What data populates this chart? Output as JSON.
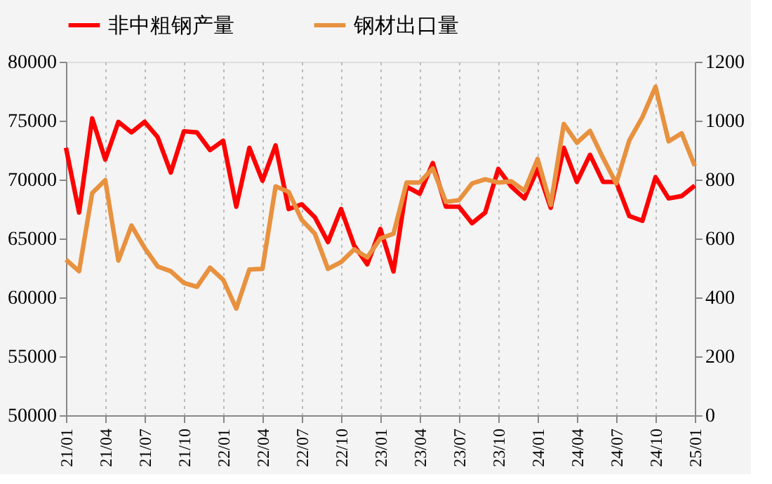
{
  "chart_data": {
    "type": "line",
    "categories": [
      "21/01",
      null,
      null,
      "21/04",
      null,
      null,
      "21/07",
      null,
      null,
      "21/10",
      null,
      null,
      "22/01",
      null,
      null,
      "22/04",
      null,
      null,
      "22/07",
      null,
      null,
      "22/10",
      null,
      null,
      "23/01",
      null,
      null,
      "23/04",
      null,
      null,
      "23/07",
      null,
      null,
      "23/10",
      null,
      null,
      "24/01",
      null,
      null,
      "24/04",
      null,
      null,
      "24/07",
      null,
      null,
      "24/10",
      null,
      null,
      "25/01"
    ],
    "series": [
      {
        "name": "非中粗钢产量",
        "color": "#ff0000",
        "values": [
          72700,
          67200,
          75200,
          71700,
          74900,
          74000,
          74900,
          73600,
          70600,
          74100,
          74000,
          72500,
          73300,
          67700,
          72700,
          69900,
          72900,
          67500,
          67900,
          66800,
          64700,
          67500,
          64400,
          62800,
          65800,
          62200,
          69400,
          68800,
          71400,
          67700,
          67700,
          66300,
          67200,
          70900,
          69400,
          68400,
          70900,
          67600,
          72700,
          69800,
          72100,
          69800,
          69800,
          66900,
          66500,
          70200,
          68400,
          68600,
          69500
        ]
      },
      {
        "name": "钢材出口量",
        "color": "#e8913f",
        "axis": "y2",
        "values": [
          528,
          489,
          754,
          798,
          525,
          644,
          568,
          505,
          489,
          449,
          436,
          501,
          460,
          362,
          495,
          497,
          777,
          758,
          663,
          616,
          497,
          520,
          563,
          536,
          600,
          616,
          790,
          790,
          838,
          724,
          730,
          787,
          801,
          790,
          794,
          762,
          870,
          714,
          989,
          925,
          965,
          873,
          787,
          933,
          1012,
          1115,
          930,
          957,
          846
        ]
      }
    ],
    "ylim": [
      50000,
      80000
    ],
    "yticks": [
      50000,
      55000,
      60000,
      65000,
      70000,
      75000,
      80000
    ],
    "y2lim": [
      0,
      1200
    ],
    "y2ticks": [
      0,
      200,
      400,
      600,
      800,
      1000,
      1200
    ],
    "grid": "x",
    "legend": "top",
    "line_style": "solid",
    "marker": "none"
  }
}
